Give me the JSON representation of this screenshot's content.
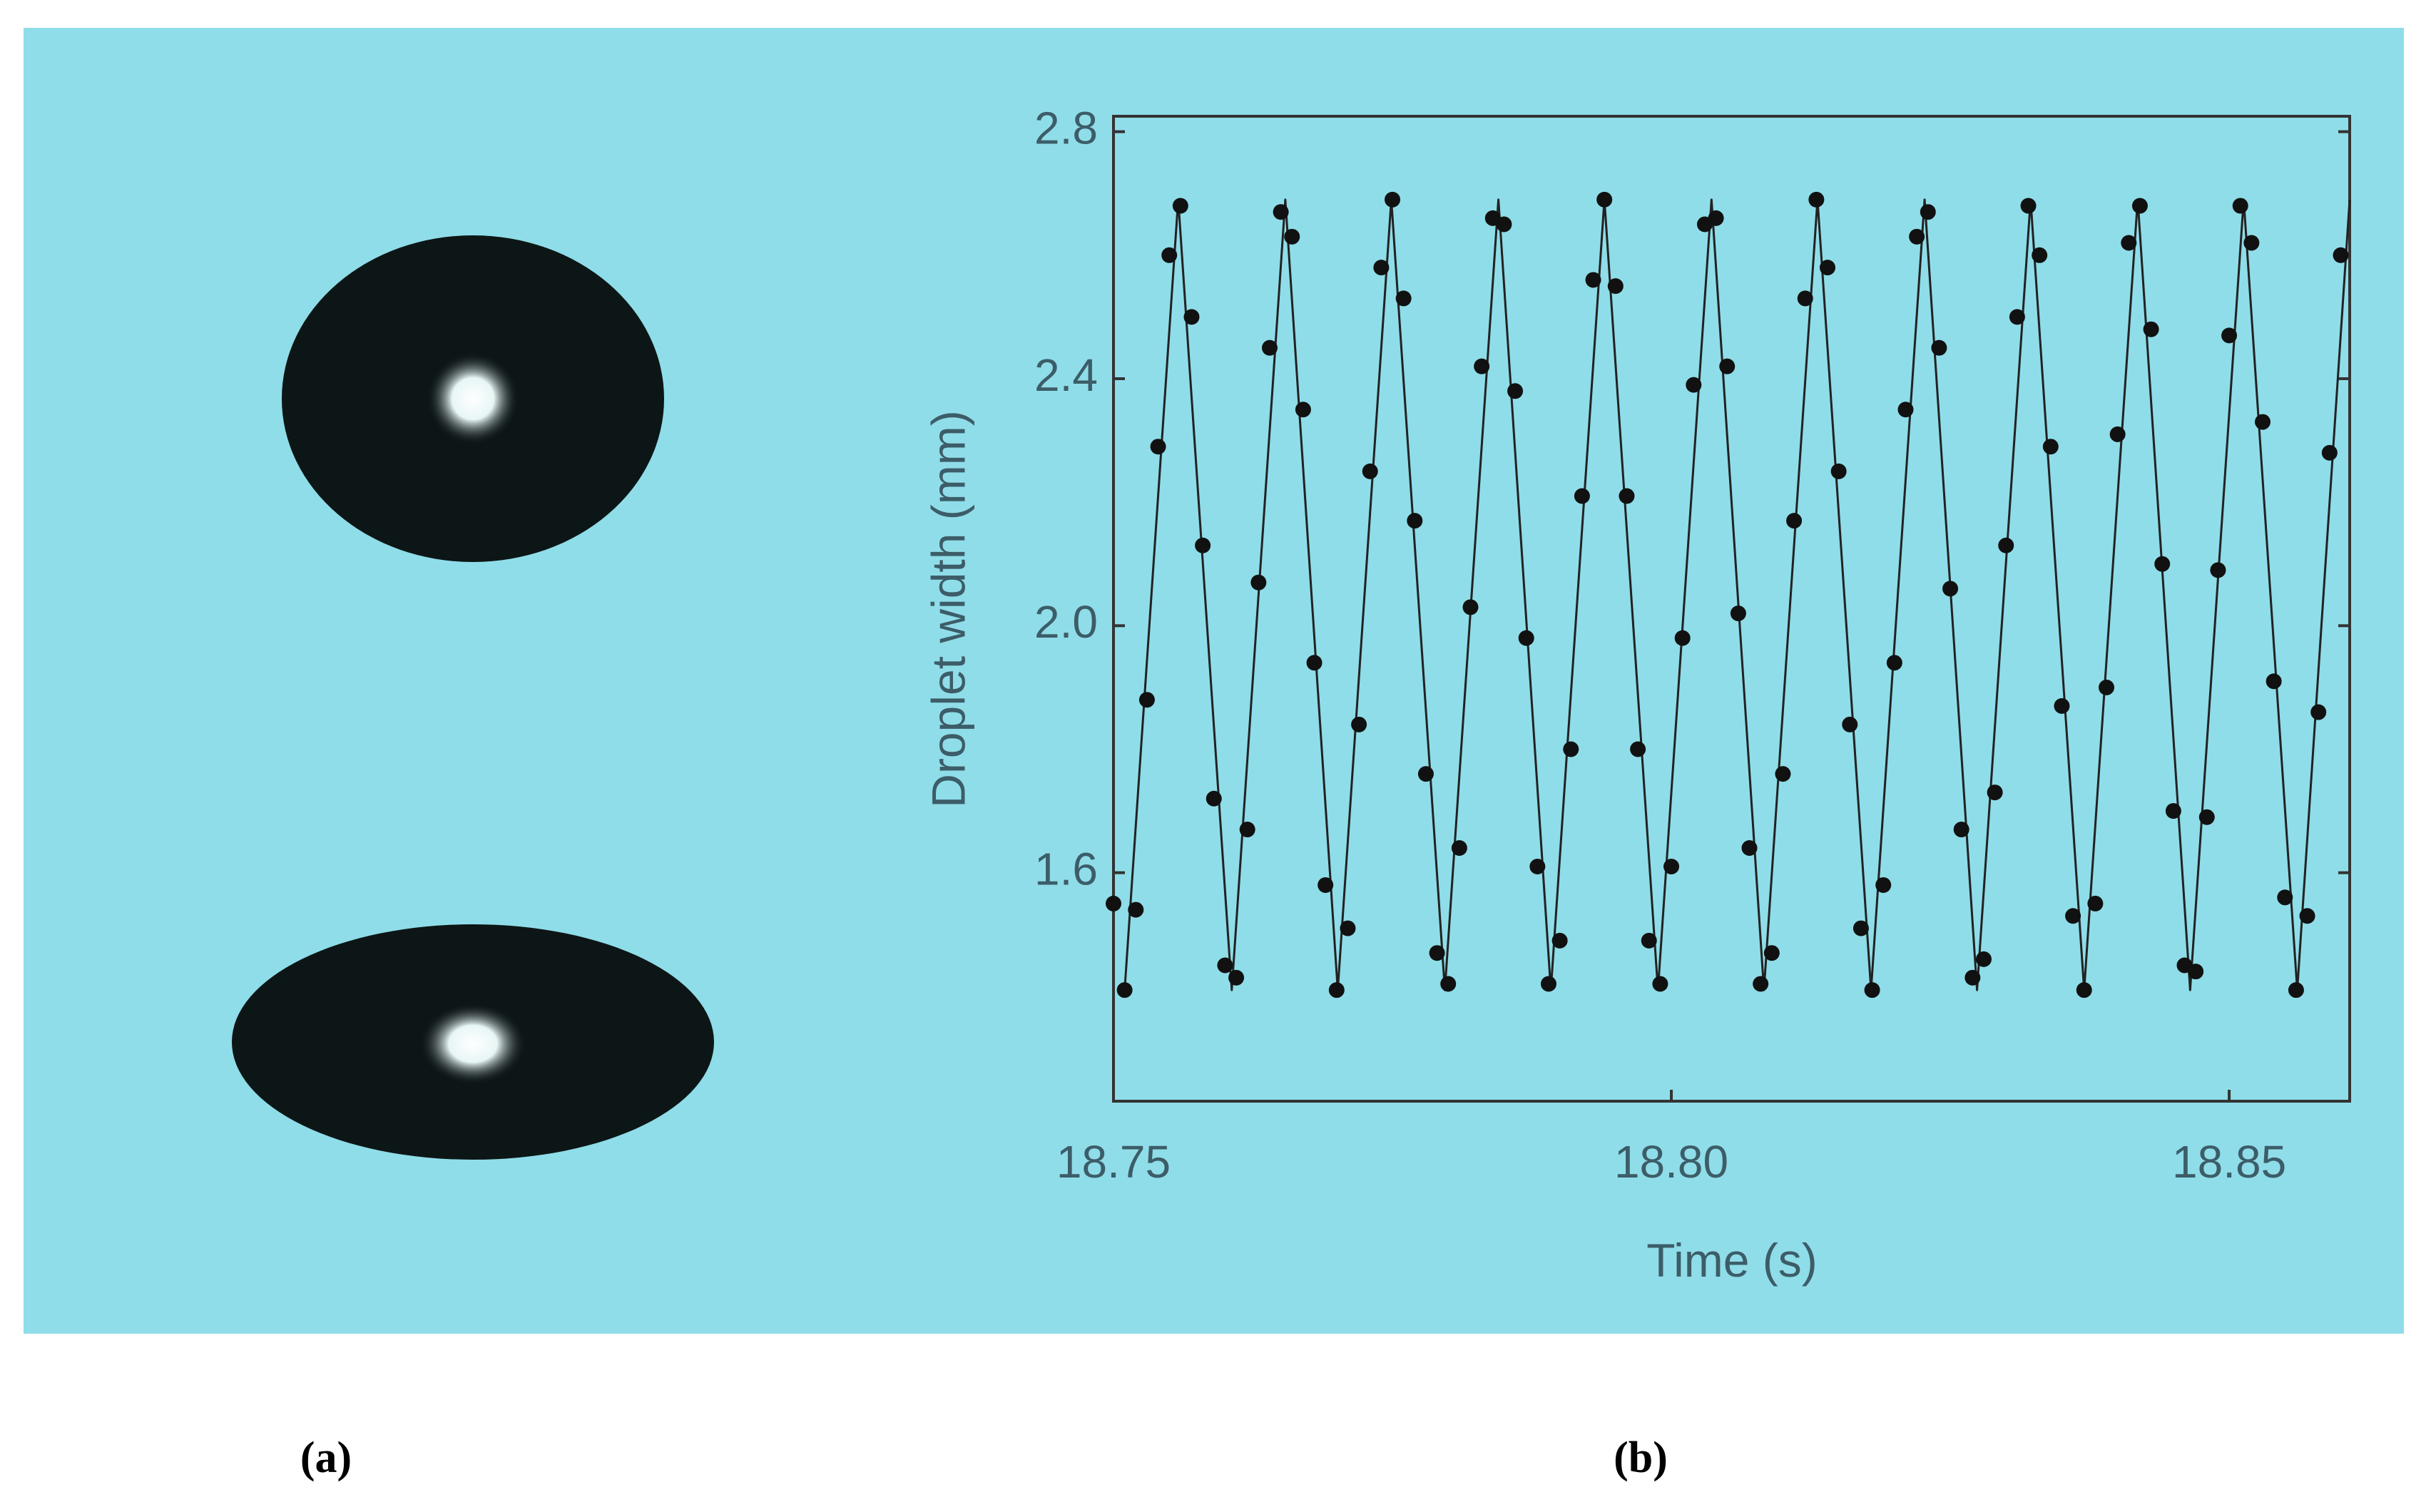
{
  "chart_data": {
    "type": "scatter",
    "xlabel": "Time (s)",
    "ylabel": "Droplet width (mm)",
    "xlim": [
      18.75,
      18.8608
    ],
    "ylim": [
      1.23,
      2.825
    ],
    "xticks": [
      18.75,
      {
        "value": 18.8,
        "label": "18.80"
      },
      18.85
    ],
    "yticks": [
      1.6,
      {
        "value": 2,
        "label": "2.0"
      },
      2.4,
      2.8
    ],
    "series": [
      {
        "style": "markers",
        "color": "#111111",
        "x": [
          18.75,
          18.751,
          18.752,
          18.753,
          18.754,
          18.755,
          18.756,
          18.757,
          18.758,
          18.759,
          18.76,
          18.761,
          18.762,
          18.763,
          18.764,
          18.765,
          18.766,
          18.767,
          18.768,
          18.769,
          18.77,
          18.771,
          18.772,
          18.773,
          18.774,
          18.775,
          18.776,
          18.777,
          18.778,
          18.779,
          18.78,
          18.781,
          18.782,
          18.783,
          18.784,
          18.785,
          18.786,
          18.787,
          18.788,
          18.789,
          18.79,
          18.791,
          18.792,
          18.793,
          18.794,
          18.795,
          18.796,
          18.797,
          18.798,
          18.799,
          18.8,
          18.801,
          18.802,
          18.803,
          18.804,
          18.805,
          18.806,
          18.807,
          18.808,
          18.809,
          18.81,
          18.811,
          18.812,
          18.813,
          18.814,
          18.815,
          18.816,
          18.817,
          18.818,
          18.819,
          18.82,
          18.821,
          18.822,
          18.823,
          18.824,
          18.825,
          18.826,
          18.827,
          18.828,
          18.829,
          18.83,
          18.831,
          18.832,
          18.833,
          18.834,
          18.835,
          18.836,
          18.837,
          18.838,
          18.839,
          18.84,
          18.841,
          18.842,
          18.843,
          18.844,
          18.845,
          18.846,
          18.847,
          18.848,
          18.849,
          18.85,
          18.851,
          18.852,
          18.853,
          18.854,
          18.855,
          18.856,
          18.857,
          18.858,
          18.859,
          18.86
        ],
        "values": [
          1.55,
          1.41,
          1.54,
          1.88,
          2.29,
          2.6,
          2.68,
          2.5,
          2.13,
          1.72,
          1.45,
          1.43,
          1.67,
          2.07,
          2.45,
          2.67,
          2.63,
          2.35,
          1.94,
          1.58,
          1.41,
          1.51,
          1.84,
          2.25,
          2.58,
          2.69,
          2.53,
          2.17,
          1.76,
          1.47,
          1.42,
          1.64,
          2.03,
          2.42,
          2.66,
          2.65,
          2.38,
          1.98,
          1.61,
          1.42,
          1.49,
          1.8,
          2.21,
          2.56,
          2.69,
          2.55,
          2.21,
          1.8,
          1.49,
          1.42,
          1.61,
          1.98,
          2.39,
          2.65,
          2.66,
          2.42,
          2.02,
          1.64,
          1.42,
          1.47,
          1.76,
          2.17,
          2.53,
          2.69,
          2.58,
          2.25,
          1.84,
          1.51,
          1.41,
          1.58,
          1.94,
          2.35,
          2.63,
          2.67,
          2.45,
          2.06,
          1.67,
          1.43,
          1.46,
          1.73,
          2.13,
          2.5,
          2.68,
          2.6,
          2.29,
          1.87,
          1.53,
          1.41,
          1.55,
          1.9,
          2.31,
          2.62,
          2.68,
          2.48,
          2.1,
          1.7,
          1.45,
          1.44,
          1.69,
          2.09,
          2.47,
          2.68,
          2.62,
          2.33,
          1.91,
          1.56,
          1.41,
          1.53,
          1.86,
          2.28,
          2.6
        ]
      },
      {
        "style": "line",
        "color": "#222222",
        "x": [
          18.751,
          18.7558,
          18.7606,
          18.7654,
          18.7701,
          18.7749,
          18.7797,
          18.7845,
          18.7892,
          18.794,
          18.7988,
          18.8036,
          18.8083,
          18.8131,
          18.8179,
          18.8227,
          18.8274,
          18.8322,
          18.837,
          18.8418,
          18.8465,
          18.8513,
          18.8561,
          18.8608
        ],
        "values": [
          1.41,
          2.69,
          1.41,
          2.69,
          1.41,
          2.69,
          1.41,
          2.69,
          1.41,
          2.69,
          1.41,
          2.69,
          1.41,
          2.69,
          1.41,
          2.69,
          1.41,
          2.69,
          1.41,
          2.69,
          1.41,
          2.69,
          1.41,
          2.69
        ]
      }
    ]
  },
  "panel_labels": [
    "(a)",
    "(b)"
  ]
}
